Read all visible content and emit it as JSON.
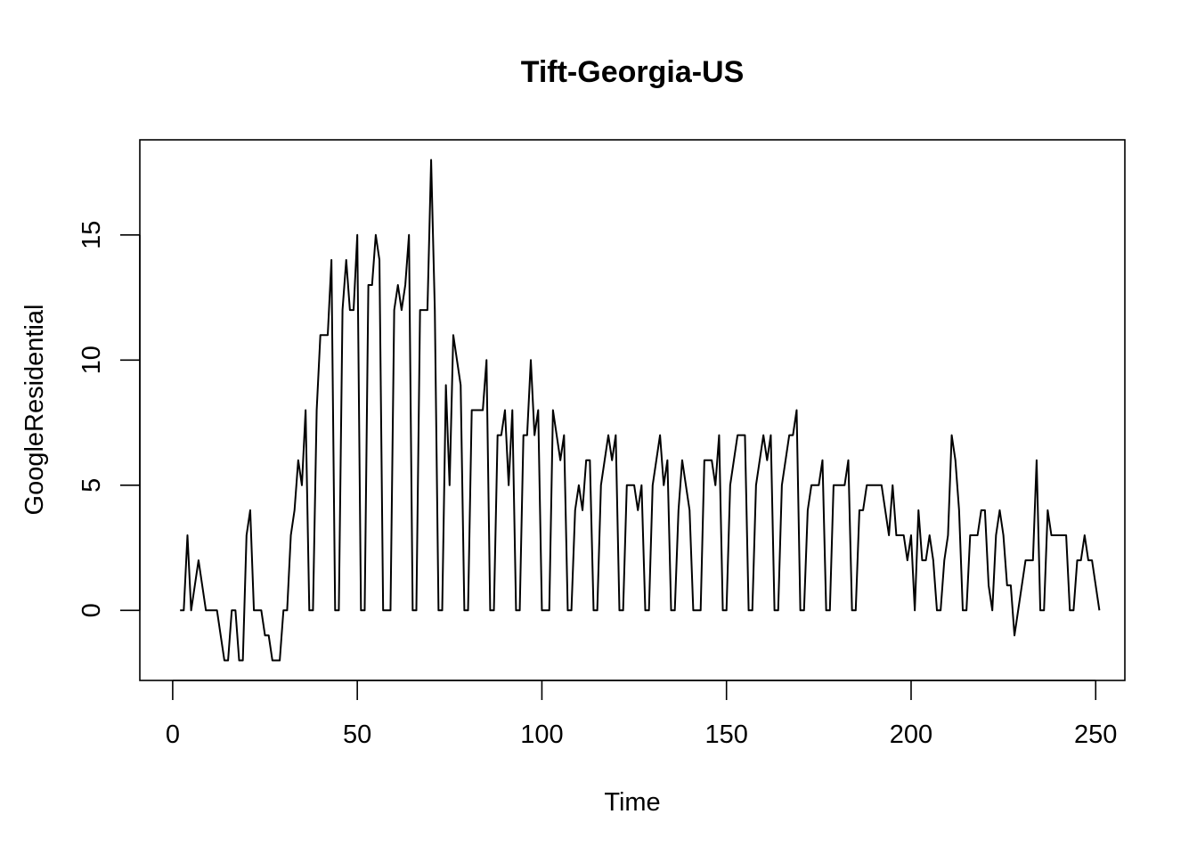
{
  "chart_data": {
    "type": "line",
    "title": "Tift-Georgia-US",
    "xlabel": "Time",
    "ylabel": "GoogleResidential",
    "xlim": [
      -8.9,
      257.9
    ],
    "ylim": [
      -2.8,
      18.8
    ],
    "x_ticks": [
      0,
      50,
      100,
      150,
      200,
      250
    ],
    "y_ticks": [
      0,
      5,
      10,
      15
    ],
    "grid": false,
    "legend": "none",
    "line_color": "#000000",
    "series": [
      {
        "x_start": 2,
        "values": [
          0,
          0,
          3,
          0,
          1,
          2,
          1,
          0,
          0,
          0,
          0,
          -1,
          -2,
          -2,
          0,
          0,
          -2,
          -2,
          3,
          4,
          0,
          0,
          0,
          -1,
          -1,
          -2,
          -2,
          -2,
          0,
          0,
          3,
          4,
          6,
          5,
          8,
          0,
          0,
          8,
          11,
          11,
          11,
          14,
          0,
          0,
          12,
          14,
          12,
          12,
          15,
          0,
          0,
          13,
          13,
          15,
          14,
          0,
          0,
          0,
          12,
          13,
          12,
          13,
          15,
          0,
          0,
          12,
          12,
          12,
          18,
          12,
          0,
          0,
          9,
          5,
          11,
          10,
          9,
          0,
          0,
          8,
          8,
          8,
          8,
          10,
          0,
          0,
          7,
          7,
          8,
          5,
          8,
          0,
          0,
          7,
          7,
          10,
          7,
          8,
          0,
          0,
          0,
          8,
          7,
          6,
          7,
          0,
          0,
          4,
          5,
          4,
          6,
          6,
          0,
          0,
          5,
          6,
          7,
          6,
          7,
          0,
          0,
          5,
          5,
          5,
          4,
          5,
          0,
          0,
          5,
          6,
          7,
          5,
          6,
          0,
          0,
          4,
          6,
          5,
          4,
          0,
          0,
          0,
          6,
          6,
          6,
          5,
          7,
          0,
          0,
          5,
          6,
          7,
          7,
          7,
          0,
          0,
          5,
          6,
          7,
          6,
          7,
          0,
          0,
          5,
          6,
          7,
          7,
          8,
          0,
          0,
          4,
          5,
          5,
          5,
          6,
          0,
          0,
          5,
          5,
          5,
          5,
          6,
          0,
          0,
          4,
          4,
          5,
          5,
          5,
          5,
          5,
          4,
          3,
          5,
          3,
          3,
          3,
          2,
          3,
          0,
          4,
          2,
          2,
          3,
          2,
          0,
          0,
          2,
          3,
          7,
          6,
          4,
          0,
          0,
          3,
          3,
          3,
          4,
          4,
          1,
          0,
          3,
          4,
          3,
          1,
          1,
          -1,
          0,
          1,
          2,
          2,
          2,
          6,
          0,
          0,
          4,
          3,
          3,
          3,
          3,
          3,
          0,
          0,
          2,
          2,
          3,
          2,
          2,
          1,
          0
        ]
      }
    ]
  }
}
